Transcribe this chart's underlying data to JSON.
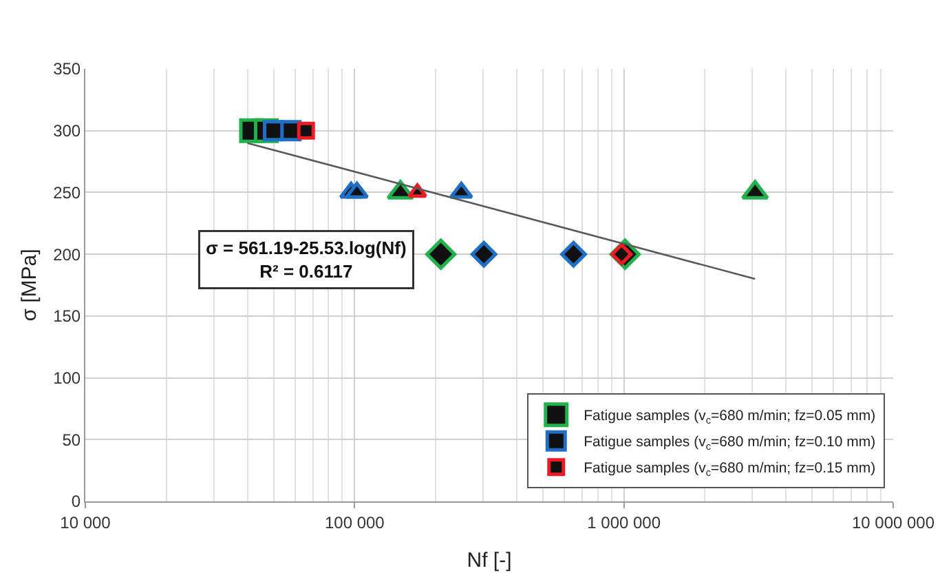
{
  "chart_data": {
    "type": "scatter",
    "xlabel": "Nf [-]",
    "ylabel": "σ [MPa]",
    "log": "x",
    "xlim": [
      10000,
      10000000
    ],
    "xticks": [
      {
        "value": 10000,
        "label": "10 000"
      },
      {
        "value": 100000,
        "label": "100 000"
      },
      {
        "value": 1000000,
        "label": "1 000 000"
      },
      {
        "value": 10000000,
        "label": "10 000 000"
      }
    ],
    "ylim": [
      0,
      350
    ],
    "yticks": [
      0,
      50,
      100,
      150,
      200,
      250,
      300,
      350
    ],
    "grid": true,
    "legend": "bottom right",
    "annotations": [
      "σ = 561.19-25.53.log(Nf)\nR² = 0.6117"
    ],
    "series": [
      {
        "name": "Fatigue samples (v$_{c}$=680 m/min; fz=0.05 mm)",
        "color": "#22b14c",
        "x": [
          41400,
          47000,
          148000,
          3070000,
          209000,
          1010000
        ],
        "values": [
          300,
          300,
          250,
          250,
          200,
          200
        ],
        "marker": [
          "square",
          "square",
          "triangle",
          "triangle",
          "diamond",
          "diamond"
        ]
      },
      {
        "name": "Fatigue samples (v$_{c}$=680 m/min; fz=0.10 mm)",
        "color": "#1f6fc5",
        "x": [
          50000,
          58000,
          97000,
          102000,
          249000,
          302000,
          650000
        ],
        "values": [
          300,
          300,
          250,
          250,
          250,
          200,
          200
        ],
        "marker": [
          "square",
          "square",
          "triangle",
          "triangle",
          "triangle",
          "diamond",
          "diamond"
        ]
      },
      {
        "name": "Fatigue samples (v$_{c}$=680 m/min; fz=0.15 mm)",
        "color": "#ed1c24",
        "x": [
          66000,
          171000,
          980000
        ],
        "values": [
          300,
          250,
          200
        ],
        "marker": [
          "square",
          "triangle",
          "diamond"
        ]
      },
      {
        "type": "line",
        "color": "#595959",
        "x": [
          40000,
          3070000
        ],
        "values": [
          290,
          180
        ],
        "marker": "none",
        "line_style": "solid"
      }
    ]
  }
}
